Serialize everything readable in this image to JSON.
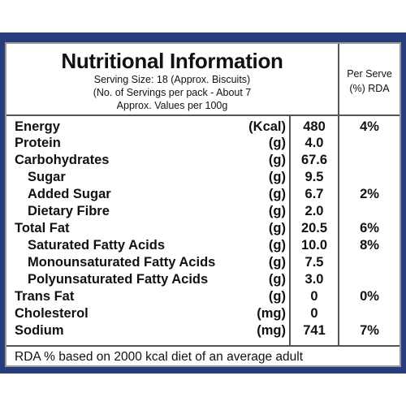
{
  "header": {
    "title": "Nutritional Information",
    "serving_size": "Serving Size: 18 (Approx. Biscuits)",
    "servings_per_pack": "(No. of Servings per pack - About 7",
    "approx_values": "Approx. Values per 100g",
    "rda_line1": "Per Serve",
    "rda_line2": "(%) RDA"
  },
  "rows": [
    {
      "name": "Energy",
      "unit": "(Kcal)",
      "value": "480",
      "rda": "4%",
      "indent": false
    },
    {
      "name": "Protein",
      "unit": "(g)",
      "value": "4.0",
      "rda": "",
      "indent": false
    },
    {
      "name": "Carbohydrates",
      "unit": "(g)",
      "value": "67.6",
      "rda": "",
      "indent": false
    },
    {
      "name": "Sugar",
      "unit": "(g)",
      "value": "9.5",
      "rda": "",
      "indent": true
    },
    {
      "name": "Added Sugar",
      "unit": "(g)",
      "value": "6.7",
      "rda": "2%",
      "indent": true
    },
    {
      "name": "Dietary Fibre",
      "unit": "(g)",
      "value": "2.0",
      "rda": "",
      "indent": true
    },
    {
      "name": "Total Fat",
      "unit": "(g)",
      "value": "20.5",
      "rda": "6%",
      "indent": false
    },
    {
      "name": "Saturated Fatty Acids",
      "unit": "(g)",
      "value": "10.0",
      "rda": "8%",
      "indent": true
    },
    {
      "name": "Monounsaturated Fatty Acids",
      "unit": "(g)",
      "value": "7.5",
      "rda": "",
      "indent": true
    },
    {
      "name": "Polyunsaturated Fatty Acids",
      "unit": "(g)",
      "value": "3.0",
      "rda": "",
      "indent": true
    },
    {
      "name": "Trans Fat",
      "unit": "(g)",
      "value": "0",
      "rda": "0%",
      "indent": false
    },
    {
      "name": "Cholesterol",
      "unit": "(mg)",
      "value": "0",
      "rda": "",
      "indent": false
    },
    {
      "name": "Sodium",
      "unit": "(mg)",
      "value": "741",
      "rda": "7%",
      "indent": false
    }
  ],
  "footer": {
    "note": "RDA % based on 2000 kcal diet of an average adult"
  },
  "colors": {
    "frame": "#283e7c",
    "rule": "#555555"
  }
}
